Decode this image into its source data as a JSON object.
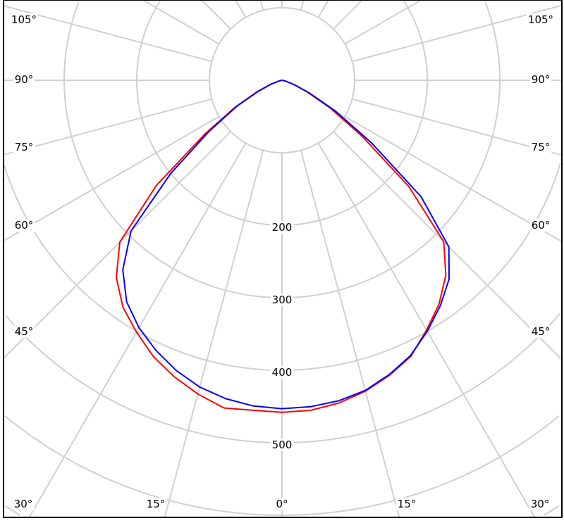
{
  "chart_data": {
    "type": "polar-line",
    "angle_unit": "degrees",
    "angles": [
      0,
      5,
      10,
      15,
      20,
      25,
      30,
      35,
      40,
      45,
      50,
      55,
      60,
      65,
      70,
      75,
      80,
      85,
      90
    ],
    "angle_tick_labels": {
      "sides": [
        "105°",
        "90°",
        "75°",
        "60°",
        "45°"
      ],
      "bottom": [
        "30°",
        "15°",
        "0°",
        "15°",
        "30°"
      ]
    },
    "radial_tick_labels": [
      "200",
      "300",
      "400",
      "500"
    ],
    "radial_ticks": [
      200,
      300,
      400,
      500
    ],
    "radial_grid_step": 100,
    "angle_grid_step": 15,
    "grid": true,
    "series": [
      {
        "color": "#ff0000",
        "left": [
          458,
          457,
          459,
          448,
          435,
          420,
          401,
          382,
          355,
          316,
          226,
          130,
          75,
          38,
          17,
          5,
          2,
          1,
          0
        ],
        "right": [
          458,
          457,
          452,
          444,
          433,
          420,
          398,
          377,
          351,
          315,
          228,
          135,
          77,
          38,
          17,
          5,
          2,
          1,
          0
        ]
      },
      {
        "color": "#0000ff",
        "left": [
          453,
          451,
          446,
          438,
          426,
          411,
          394,
          373,
          341,
          294,
          200,
          122,
          72,
          36,
          16,
          5,
          2,
          1,
          0
        ],
        "right": [
          453,
          452,
          449,
          443,
          432,
          419,
          400,
          380,
          358,
          325,
          250,
          150,
          85,
          42,
          18,
          6,
          2,
          1,
          0
        ]
      }
    ]
  }
}
